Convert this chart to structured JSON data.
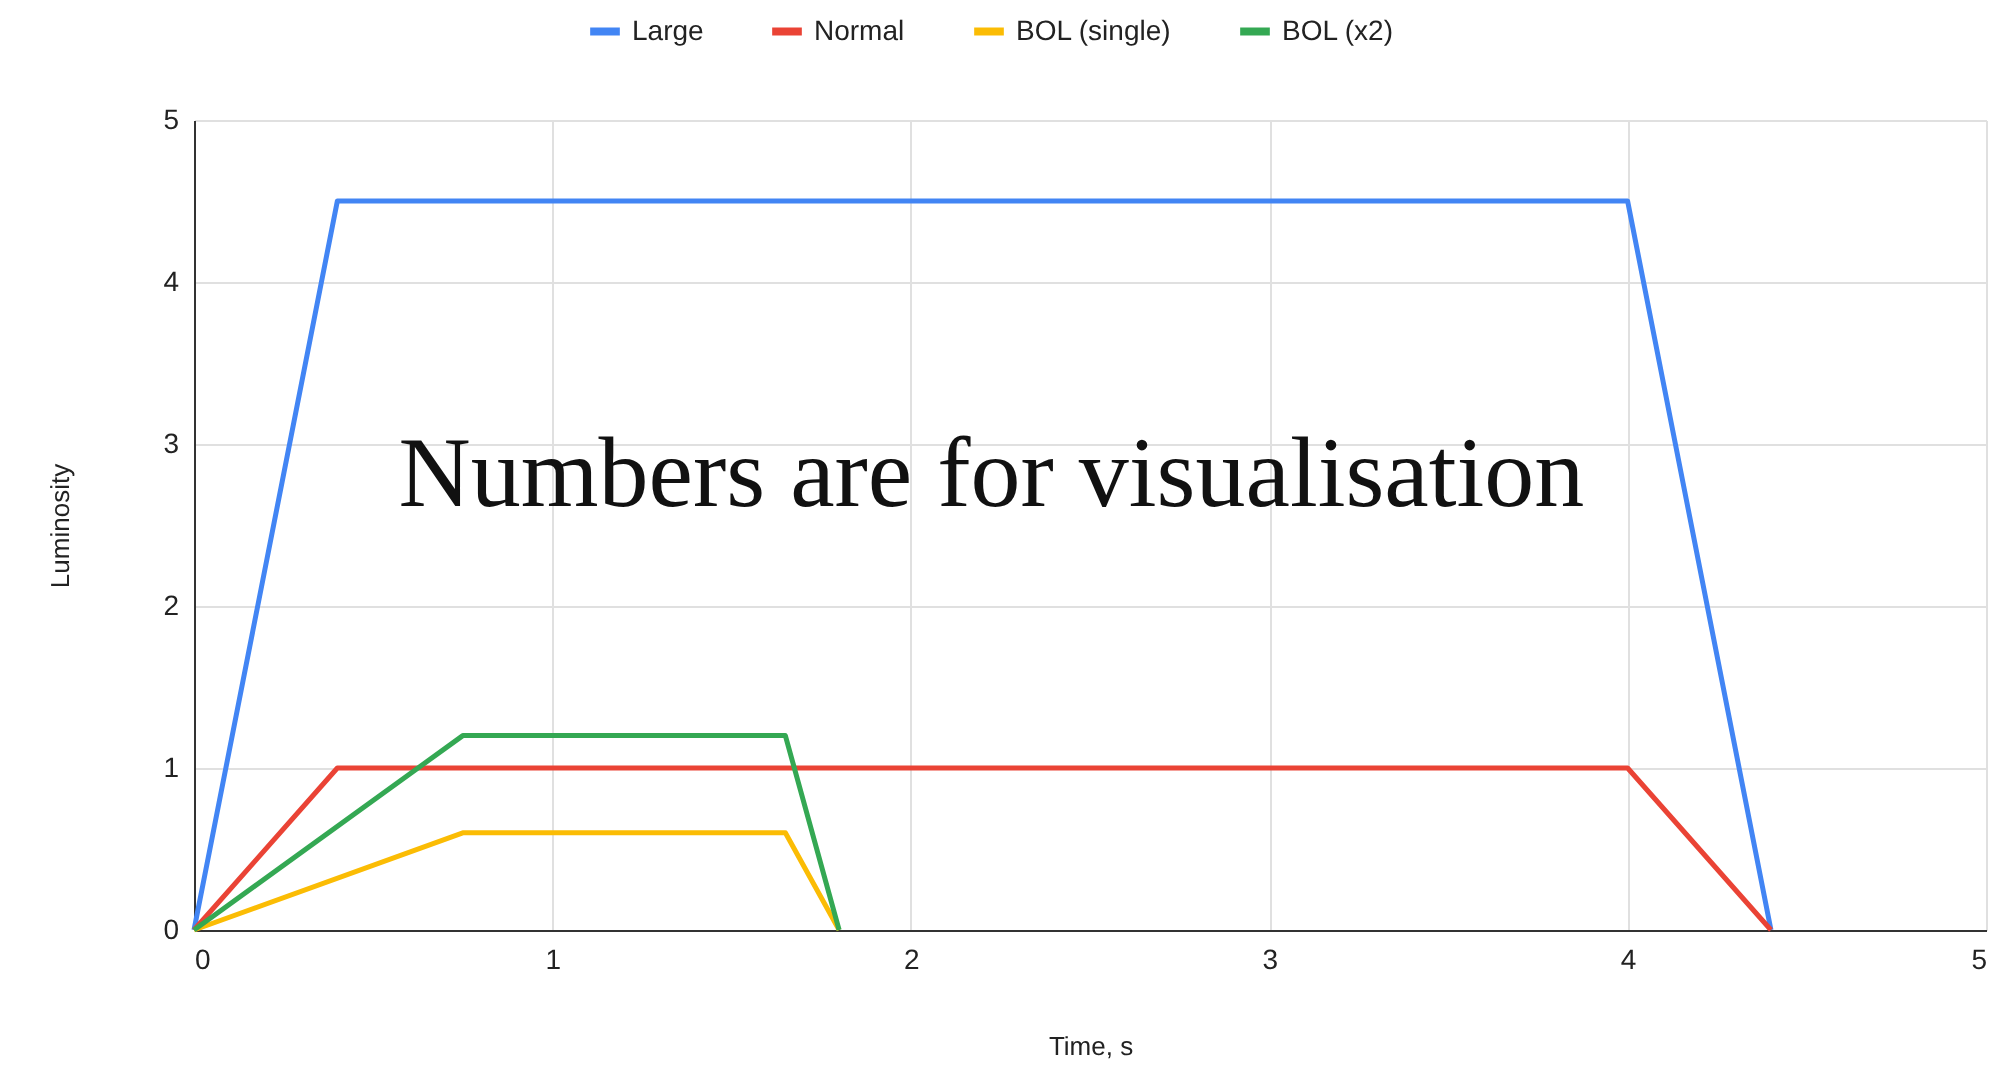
{
  "chart_data": {
    "type": "line",
    "xlabel": "Time, s",
    "ylabel": "Luminosity",
    "annotations": [
      "Numbers are for visualisation"
    ],
    "series": [
      {
        "name": "Large",
        "color": "#4285f4",
        "x": [
          0,
          0.4,
          4,
          4.4
        ],
        "values": [
          0,
          4.5,
          4.5,
          0
        ]
      },
      {
        "name": "Normal",
        "color": "#ea4335",
        "x": [
          0,
          0.4,
          4,
          4.4
        ],
        "values": [
          0,
          1,
          1,
          0
        ]
      },
      {
        "name": "BOL (single)",
        "color": "#fbbc04",
        "x": [
          0,
          0.75,
          1.65,
          1.8
        ],
        "values": [
          0,
          0.6,
          0.6,
          0
        ]
      },
      {
        "name": "BOL (x2)",
        "color": "#34a853",
        "x": [
          0,
          0.75,
          1.65,
          1.8
        ],
        "values": [
          0,
          1.2,
          1.2,
          0
        ]
      }
    ],
    "xlim": [
      0,
      5
    ],
    "ylim": [
      0,
      5
    ],
    "xticks": [
      0,
      1,
      2,
      3,
      4,
      5
    ],
    "yticks": [
      0,
      1,
      2,
      3,
      4,
      5
    ],
    "grid": true,
    "legend": "top",
    "line_style": "solid"
  }
}
